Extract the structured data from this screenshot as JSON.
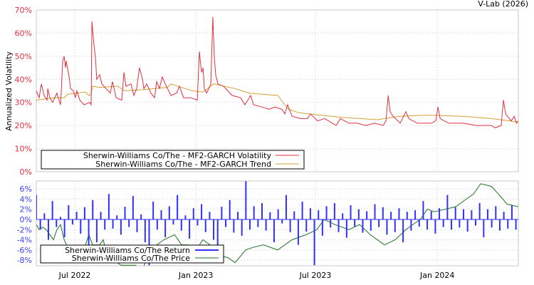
{
  "credit": "V-Lab (2026)",
  "chart_data": [
    {
      "type": "line",
      "title": "",
      "ylabel": "Annualized Volatility",
      "xlabel": "",
      "x_unit": "months since 2022-05-01",
      "xlim": [
        0,
        23.92
      ],
      "ylim": [
        0,
        70
      ],
      "yticks": [
        0,
        10,
        20,
        30,
        40,
        50,
        60,
        70
      ],
      "ytick_labels": [
        "0%",
        "10%",
        "20%",
        "30%",
        "40%",
        "50%",
        "60%",
        "70%"
      ],
      "xticks": [
        1.91,
        7.92,
        13.85,
        19.9
      ],
      "grid": true,
      "legend_placement": "bottom-left",
      "series": [
        {
          "name": "Sherwin-Williams Co/The - MF2-GARCH Volatility",
          "color": "#e03040",
          "x": [
            0,
            0.14,
            0.25,
            0.39,
            0.53,
            0.57,
            0.67,
            0.81,
            1.02,
            1.2,
            1.24,
            1.31,
            1.38,
            1.45,
            1.48,
            1.63,
            1.7,
            1.84,
            1.94,
            2.01,
            2.16,
            2.37,
            2.65,
            2.72,
            2.76,
            2.86,
            2.93,
            3.0,
            3.14,
            3.25,
            3.46,
            3.67,
            3.78,
            3.96,
            4.24,
            4.35,
            4.45,
            4.7,
            4.84,
            4.98,
            5.12,
            5.27,
            5.34,
            5.48,
            5.69,
            5.87,
            5.97,
            6.11,
            6.25,
            6.4,
            6.68,
            6.96,
            7.1,
            7.31,
            7.67,
            7.99,
            8.09,
            8.2,
            8.27,
            8.34,
            8.45,
            8.66,
            8.76,
            8.83,
            8.9,
            9.01,
            9.29,
            9.72,
            10.14,
            10.35,
            10.64,
            10.78,
            11.2,
            11.55,
            11.84,
            12.19,
            12.33,
            12.47,
            12.69,
            13.11,
            13.46,
            13.6,
            13.96,
            14.31,
            14.88,
            15.09,
            15.51,
            15.94,
            16.36,
            16.78,
            17.21,
            17.35,
            17.46,
            17.56,
            17.7,
            18.06,
            18.34,
            18.48,
            18.9,
            19.61,
            19.82,
            19.93,
            20.04,
            20.46,
            21.17,
            21.87,
            22.58,
            22.76,
            23.07,
            23.18,
            23.29,
            23.57,
            23.71,
            23.82,
            23.92
          ],
          "y": [
            35,
            32,
            38,
            33,
            31,
            36,
            32,
            30,
            34,
            29,
            35,
            48,
            50,
            45,
            48,
            41,
            36,
            35,
            32,
            35,
            31,
            29,
            30,
            29,
            65,
            55,
            50,
            40,
            42,
            38,
            36,
            34,
            39,
            32,
            31,
            43,
            37,
            38,
            33,
            36,
            45,
            40,
            36,
            38,
            34,
            32,
            39,
            36,
            41,
            38,
            33,
            34,
            37,
            32,
            32,
            31,
            52,
            43,
            45,
            36,
            34,
            38,
            67,
            50,
            42,
            38,
            37,
            33,
            32,
            29,
            33,
            29,
            28,
            27,
            28,
            27,
            25,
            29,
            24,
            23,
            23,
            25,
            22,
            23,
            20,
            23,
            21,
            21,
            20,
            21,
            20,
            22,
            33,
            26,
            24,
            21,
            26,
            23,
            21,
            21,
            22,
            28,
            23,
            21,
            21,
            20,
            20,
            19,
            20,
            31,
            25,
            22,
            24,
            21,
            22
          ]
        },
        {
          "name": "Sherwin-Williams Co/The - MF2-GARCH Trend",
          "color": "#d4a030",
          "x": [
            0,
            0.85,
            1.38,
            1.55,
            2.44,
            2.61,
            2.72,
            2.79,
            3.14,
            4.03,
            4.38,
            5.27,
            6.5,
            6.68,
            7.39,
            7.74,
            8.27,
            8.8,
            9.86,
            10.57,
            11.98,
            12.33,
            12.51,
            13.04,
            14.1,
            15.16,
            16.93,
            17.99,
            19.4,
            21.17,
            22.58,
            23.92
          ],
          "y": [
            31,
            32,
            32,
            33.5,
            34.5,
            33,
            33.5,
            37,
            36.5,
            37,
            35,
            35.5,
            36.5,
            38,
            36,
            35,
            34.5,
            38,
            36,
            34,
            33,
            29,
            27,
            25.5,
            24.5,
            23.5,
            22.5,
            24,
            24.5,
            24,
            23,
            21.5
          ]
        }
      ]
    },
    {
      "type": "line",
      "title": "",
      "ylabel": "",
      "x_unit": "months since 2022-05-01",
      "xlim": [
        0,
        23.92
      ],
      "ylim": [
        -9.1,
        7.55
      ],
      "yticks": [
        6,
        4,
        2,
        0,
        -2,
        -4,
        -6,
        -8
      ],
      "ytick_labels": [
        "6%",
        "4%",
        "2%",
        "0%",
        "-2%",
        "-4%",
        "-6%",
        "-8%"
      ],
      "xticks": [
        1.91,
        7.92,
        13.85,
        19.9
      ],
      "xtick_labels": [
        "Jul 2022",
        "Jan 2023",
        "Jul 2023",
        "Jan 2024"
      ],
      "grid": true,
      "legend_placement": "bottom-left",
      "series": [
        {
          "name": "Sherwin-Williams Co/The Return",
          "color": "#3030ff",
          "type": "bar",
          "x_start": 0,
          "x_step": 0.2,
          "values": [
            4.8,
            -2,
            1.2,
            -4,
            3.6,
            -1.5,
            0.5,
            -3.5,
            2.8,
            -1,
            1.5,
            -2.8,
            2.4,
            -5,
            3.8,
            -4.5,
            1.5,
            -2,
            5,
            -1.8,
            0.8,
            -3,
            2.5,
            -1.5,
            4.6,
            -2.5,
            1,
            -4.5,
            -9,
            3.5,
            -2,
            1.8,
            -3.5,
            2.6,
            -1,
            4.8,
            -2.2,
            0.8,
            -3.8,
            2.2,
            -1.2,
            3,
            -2.5,
            1.5,
            -4,
            -6,
            2.5,
            -1.5,
            3.8,
            -2.6,
            1.5,
            -3.2,
            7.5,
            -2,
            2.6,
            -1.5,
            3.2,
            -2.2,
            1.4,
            -4.5,
            2,
            -0.8,
            4.8,
            -2.5,
            1.6,
            -5,
            3.5,
            -2.4,
            2.2,
            -9,
            1.8,
            -3.2,
            2.6,
            -1.6,
            3.2,
            -2.5,
            1.2,
            -3.6,
            2.8,
            -1.4,
            2,
            -2.6,
            1.6,
            -2.2,
            3,
            -1.5,
            2.4,
            -3,
            1.5,
            -2.5,
            2.2,
            -4.5,
            1.5,
            -2.2,
            1.8,
            -1.4,
            3.6,
            -2,
            1.6,
            -2.8,
            2.2,
            -1.5,
            4.8,
            -2,
            2.4,
            -1.6,
            2,
            -2.4,
            1.8,
            -1.2,
            3.2,
            -3.5,
            2,
            -1.6,
            2.6,
            -2.2,
            1.5,
            -1.8,
            2.8,
            -2
          ]
        },
        {
          "name": "Sherwin-Williams Co/The Price",
          "color": "#207020",
          "x": [
            0,
            0.14,
            0.32,
            0.49,
            0.67,
            0.85,
            1.02,
            1.2,
            1.38,
            1.73,
            2.08,
            2.44,
            2.61,
            2.79,
            3.14,
            3.32,
            3.5,
            3.85,
            4.2,
            4.91,
            5.27,
            5.62,
            6.33,
            6.86,
            7.21,
            7.56,
            7.92,
            8.27,
            8.62,
            8.98,
            9.51,
            9.86,
            10.39,
            10.74,
            11.27,
            11.98,
            12.69,
            13.39,
            13.92,
            14.28,
            14.81,
            15.51,
            16.04,
            16.57,
            17.28,
            17.81,
            18.34,
            18.69,
            19.05,
            19.4,
            19.75,
            20.28,
            20.81,
            21.34,
            21.7,
            22.05,
            22.58,
            22.93,
            23.36,
            23.92
          ],
          "y": [
            -1,
            -2,
            -1.5,
            -2,
            -3,
            -4,
            -2,
            -1,
            -4,
            -7,
            -8,
            -5,
            -3,
            -5,
            -5,
            -4,
            -7,
            -8,
            -9,
            -9,
            -10,
            -6,
            -4,
            -3,
            -5,
            -5,
            -6,
            -4,
            -5,
            -7,
            -7.5,
            -8.5,
            -6,
            -5.5,
            -5,
            -6,
            -4,
            -3,
            -2,
            0,
            -1,
            -2,
            -1,
            -3,
            -5,
            -4,
            -2,
            -1,
            0,
            2,
            1.5,
            2,
            2.5,
            4,
            5,
            7,
            6.5,
            5,
            3,
            2.5
          ]
        }
      ]
    }
  ]
}
